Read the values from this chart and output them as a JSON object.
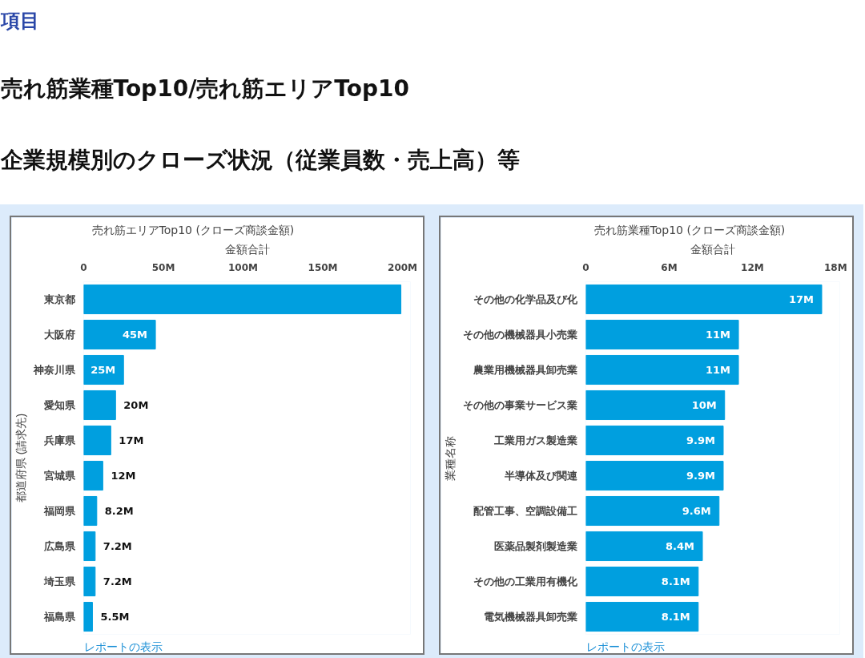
{
  "chart_data": [
    {
      "type": "other",
      "title": "項目",
      "annotations": [
        "売れ筋業種Top10/売れ筋エリアTop10",
        "企業規模別のクローズ状況（従業員数・売上高）等"
      ]
    },
    {
      "type": "bar",
      "orientation": "horizontal",
      "title": "売れ筋エリアTop10 (クローズ商談金額)",
      "xlabel": "金額合計",
      "ylabel": "都道府県 (請求先)",
      "categories": [
        "東京都",
        "大阪府",
        "神奈川県",
        "愛知県",
        "兵庫県",
        "宮城県",
        "福岡県",
        "広島県",
        "埼玉県",
        "福島県"
      ],
      "values": [
        199,
        45,
        25,
        20,
        17,
        12,
        8.2,
        7.2,
        7.2,
        5.5
      ],
      "value_labels": [
        null,
        "45M",
        "25M",
        "20M",
        "17M",
        "12M",
        "8.2M",
        "7.2M",
        "7.2M",
        "5.5M"
      ],
      "color": "#009fdf",
      "xlim": [
        0,
        205
      ],
      "xticks": [
        0,
        {
          "value": 50,
          "label": "50M"
        },
        {
          "value": 100,
          "label": "100M"
        },
        {
          "value": 150,
          "label": "150M"
        },
        {
          "value": 200,
          "label": "200M"
        }
      ],
      "grid": false,
      "annotations": [
        "レポートの表示"
      ]
    },
    {
      "type": "bar",
      "orientation": "horizontal",
      "title": "売れ筋業種Top10 (クローズ商談金額)",
      "xlabel": "金額合計",
      "ylabel": "業種名称",
      "categories": [
        "その他の化学品及び化",
        "その他の機械器具小売業",
        "農業用機械器具卸売業",
        "その他の事業サービス業",
        "工業用ガス製造業",
        "半導体及び関連",
        "配管工事、空調設備工",
        "医薬品製剤製造業",
        "その他の工業用有機化",
        "電気機械器具卸売業"
      ],
      "values": [
        17,
        11,
        11,
        10,
        9.9,
        9.9,
        9.6,
        8.4,
        8.1,
        8.1
      ],
      "value_labels": [
        "17M",
        "11M",
        "11M",
        "10M",
        "9.9M",
        "9.9M",
        "9.6M",
        "8.4M",
        "8.1M",
        "8.1M"
      ],
      "color": "#009fdf",
      "xlim": [
        0,
        18.3
      ],
      "xticks": [
        0,
        {
          "value": 6,
          "label": "6M"
        },
        {
          "value": 12,
          "label": "12M"
        },
        {
          "value": 18,
          "label": "18M"
        }
      ],
      "grid": false,
      "annotations": [
        "レポートの表示"
      ]
    }
  ]
}
